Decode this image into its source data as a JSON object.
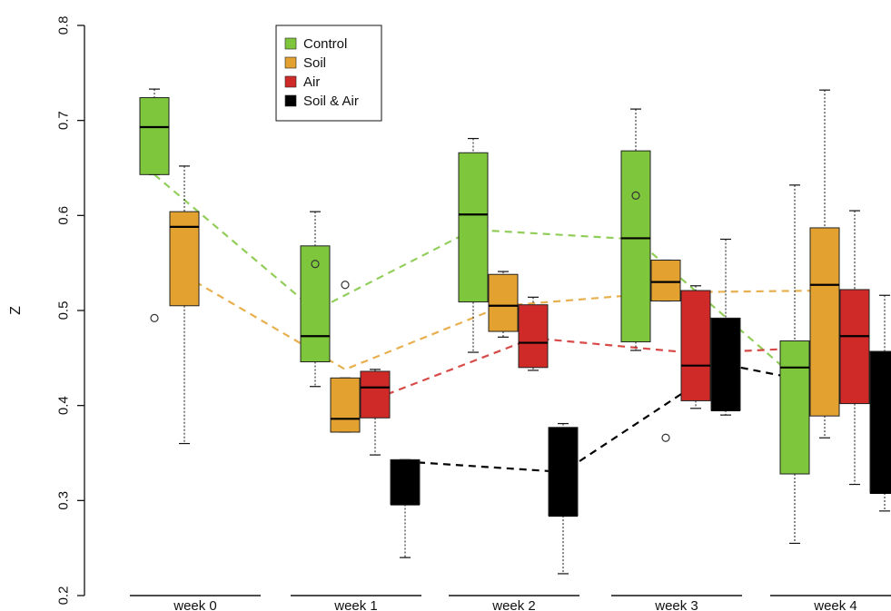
{
  "chart_data": {
    "type": "box",
    "ylabel": "Z",
    "ylim": [
      0.2,
      0.8
    ],
    "yticks": [
      "0.2",
      "0.3",
      "0.4",
      "0.5",
      "0.6",
      "0.7",
      "0.8"
    ],
    "categories": [
      "week 0",
      "week 1",
      "week 2",
      "week 3",
      "week 4"
    ],
    "legend": {
      "position": "top-left"
    },
    "series": [
      {
        "name": "Control",
        "color": "#7ec63c",
        "boxes": [
          {
            "week": "week 0",
            "min": 0.643,
            "q1": 0.643,
            "median": 0.693,
            "q3": 0.724,
            "max": 0.733,
            "outliers": [
              0.492
            ]
          },
          {
            "week": "week 1",
            "min": 0.42,
            "q1": 0.446,
            "median": 0.473,
            "q3": 0.568,
            "max": 0.604,
            "outliers": [
              0.549
            ]
          },
          {
            "week": "week 2",
            "min": 0.456,
            "q1": 0.509,
            "median": 0.601,
            "q3": 0.666,
            "max": 0.681,
            "outliers": []
          },
          {
            "week": "week 3",
            "min": 0.458,
            "q1": 0.467,
            "median": 0.576,
            "q3": 0.668,
            "max": 0.712,
            "outliers": [
              0.621
            ]
          },
          {
            "week": "week 4",
            "min": 0.255,
            "q1": 0.328,
            "median": 0.44,
            "q3": 0.468,
            "max": 0.632,
            "outliers": []
          }
        ],
        "trend": [
          0.643,
          0.5,
          0.585,
          0.575,
          0.43
        ]
      },
      {
        "name": "Soil",
        "color": "#e3a12f",
        "boxes": [
          {
            "week": "week 0",
            "min": 0.36,
            "q1": 0.505,
            "median": 0.588,
            "q3": 0.604,
            "max": 0.652,
            "outliers": []
          },
          {
            "week": "week 1",
            "min": 0.372,
            "q1": 0.372,
            "median": 0.386,
            "q3": 0.429,
            "max": 0.429,
            "outliers": [
              0.527
            ]
          },
          {
            "week": "week 2",
            "min": 0.472,
            "q1": 0.478,
            "median": 0.505,
            "q3": 0.538,
            "max": 0.541,
            "outliers": []
          },
          {
            "week": "week 3",
            "min": 0.51,
            "q1": 0.51,
            "median": 0.53,
            "q3": 0.553,
            "max": 0.553,
            "outliers": [
              0.366
            ]
          },
          {
            "week": "week 4",
            "min": 0.366,
            "q1": 0.389,
            "median": 0.527,
            "q3": 0.587,
            "max": 0.732,
            "outliers": []
          }
        ],
        "trend": [
          0.537,
          0.438,
          0.505,
          0.519,
          0.521
        ]
      },
      {
        "name": "Air",
        "color": "#d02a28",
        "boxes": [
          {
            "week": "week 0"
          },
          {
            "week": "week 1",
            "min": 0.348,
            "q1": 0.387,
            "median": 0.419,
            "q3": 0.436,
            "max": 0.438,
            "outliers": []
          },
          {
            "week": "week 2",
            "min": 0.437,
            "q1": 0.44,
            "median": 0.466,
            "q3": 0.506,
            "max": 0.514,
            "outliers": []
          },
          {
            "week": "week 3",
            "min": 0.397,
            "q1": 0.405,
            "median": 0.442,
            "q3": 0.521,
            "max": 0.526,
            "outliers": []
          },
          {
            "week": "week 4",
            "min": 0.317,
            "q1": 0.402,
            "median": 0.473,
            "q3": 0.522,
            "max": 0.605,
            "outliers": []
          }
        ],
        "trend": [
          null,
          0.407,
          0.471,
          0.455,
          0.463
        ]
      },
      {
        "name": "Soil & Air",
        "color": "#000000",
        "boxes": [
          {
            "week": "week 0"
          },
          {
            "week": "week 1",
            "min": 0.24,
            "q1": 0.296,
            "median": 0.296,
            "q3": 0.343,
            "max": 0.343,
            "outliers": []
          },
          {
            "week": "week 2",
            "min": 0.223,
            "q1": 0.284,
            "median": 0.284,
            "q3": 0.377,
            "max": 0.381,
            "outliers": []
          },
          {
            "week": "week 3",
            "min": 0.39,
            "q1": 0.395,
            "median": 0.395,
            "q3": 0.492,
            "max": 0.575,
            "outliers": []
          },
          {
            "week": "week 4",
            "min": 0.289,
            "q1": 0.308,
            "median": 0.308,
            "q3": 0.457,
            "max": 0.516,
            "outliers": []
          }
        ],
        "trend": [
          null,
          0.341,
          0.33,
          0.443,
          0.41
        ]
      }
    ]
  }
}
